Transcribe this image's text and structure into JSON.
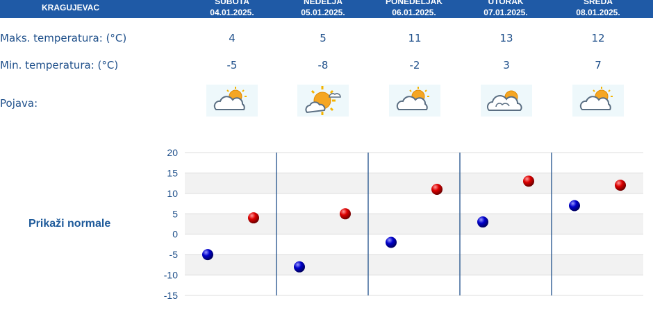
{
  "header": {
    "city": "KRAGUJEVAC",
    "days": [
      {
        "name": "SUBOTA",
        "date": "04.01.2025."
      },
      {
        "name": "NEDELJA",
        "date": "05.01.2025."
      },
      {
        "name": "PONEDELJAK",
        "date": "06.01.2025."
      },
      {
        "name": "UTORAK",
        "date": "07.01.2025."
      },
      {
        "name": "SREDA",
        "date": "08.01.2025."
      }
    ]
  },
  "rows": {
    "max_label": "Maks. temperatura: (°C)",
    "min_label": "Min. temperatura: (°C)",
    "phenomenon_label": "Pojava:",
    "max": [
      "4",
      "5",
      "11",
      "13",
      "12"
    ],
    "min": [
      "-5",
      "-8",
      "-2",
      "3",
      "7"
    ],
    "icons": [
      "partly-cloudy-icon",
      "sunny-with-cloud-icon",
      "partly-cloudy-icon",
      "cloudy-sun-icon",
      "partly-cloudy-icon"
    ]
  },
  "normals_link": "Prikaži normale",
  "colors": {
    "header": "#1f5aa6",
    "max_point": "#cc0000",
    "min_point": "#0000bb",
    "text": "#1e4f8a"
  },
  "chart_data": {
    "type": "scatter",
    "categories": [
      "04.01.2025.",
      "05.01.2025.",
      "06.01.2025.",
      "07.01.2025.",
      "08.01.2025."
    ],
    "series": [
      {
        "key": "min",
        "values": [
          -5,
          -8,
          -2,
          3,
          7
        ]
      },
      {
        "key": "max",
        "values": [
          4,
          5,
          11,
          13,
          12
        ]
      }
    ],
    "ylim": [
      -15,
      20
    ],
    "yticks": [
      "-15",
      "-10",
      "-5",
      "0",
      "5",
      "10",
      "15",
      "20"
    ],
    "grid": true
  }
}
